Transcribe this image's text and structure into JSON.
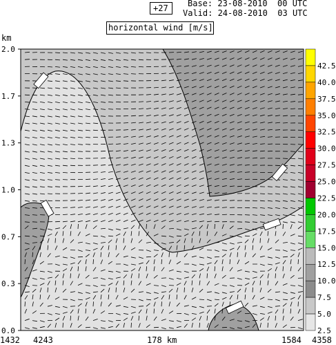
{
  "header": {
    "lead_time": "+27",
    "base": "Base: 23-08-2010  00 UTC",
    "valid": "Valid: 24-08-2010  03 UTC",
    "field": "horizontal wind [m/s]"
  },
  "chart_data": {
    "type": "heatmap",
    "title": "horizontal wind [m/s]",
    "ylabel": "km",
    "ylim": [
      0.0,
      2.0
    ],
    "y_ticks": [
      "2.0",
      "1.7",
      "1.3",
      "1.0",
      "0.7",
      "0.3",
      "0.0"
    ],
    "x_labels": {
      "left_a": "1432",
      "left_b": "4243",
      "center": "178 km",
      "right_a": "1584",
      "right_b": "4358"
    },
    "colorbar": {
      "levels": [
        "42.5",
        "40.0",
        "37.5",
        "35.0",
        "32.5",
        "30.0",
        "27.5",
        "25.0",
        "22.5",
        "20.0",
        "17.5",
        "15.0",
        "12.5",
        "10.0",
        "7.5",
        "5.0",
        "2.5"
      ],
      "colors": [
        "#ffff00",
        "#ffd700",
        "#ffa500",
        "#ff7f00",
        "#ff4500",
        "#ff0000",
        "#e0001a",
        "#c80028",
        "#a00030",
        "#00c800",
        "#32cd32",
        "#66dd66",
        "#bbbbbb",
        "#a0a0a0",
        "#8c8c8c",
        "#c8c8c8",
        "#e6e6e6"
      ]
    },
    "regions_note": "",
    "vectors": "wind barbs"
  }
}
